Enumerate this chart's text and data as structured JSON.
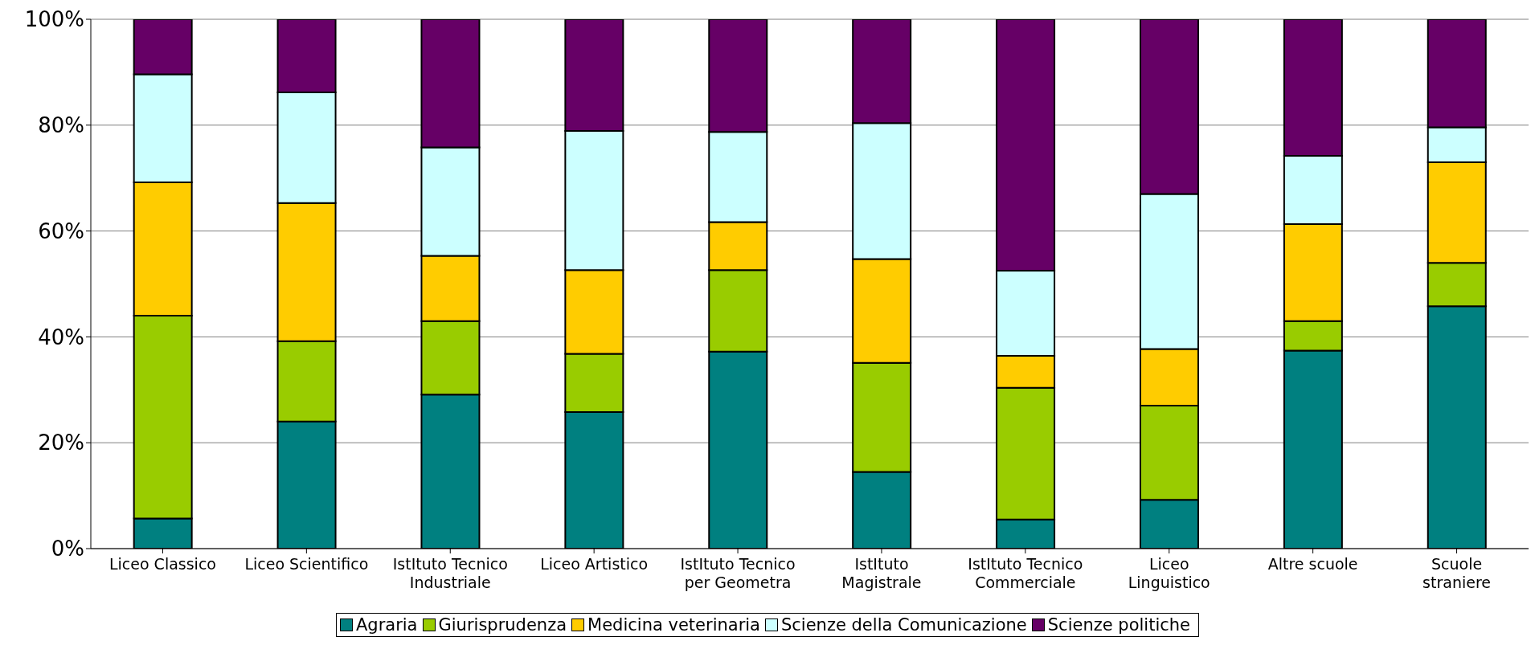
{
  "chart_data": {
    "type": "bar",
    "stacked": true,
    "categories": [
      "Liceo Classico",
      "Liceo Scientifico",
      "IstItuto Tecnico\nIndustriale",
      "Liceo Artistico",
      "IstItuto Tecnico\nper Geometra",
      "IstItuto\nMagistrale",
      "IstItuto Tecnico\nCommerciale",
      "Liceo\nLinguistico",
      "Altre scuole",
      "Scuole\nstraniere"
    ],
    "series": [
      {
        "name": "Agraria",
        "color": "#008080",
        "values": [
          5.7,
          24,
          29.1,
          25.8,
          37.2,
          14.5,
          5.5,
          9.2,
          37.4,
          45.8
        ]
      },
      {
        "name": "Giurisprudenza",
        "color": "#99cc00",
        "values": [
          38.3,
          15.2,
          13.9,
          11,
          15.4,
          20.6,
          24.9,
          17.8,
          5.6,
          8.2
        ]
      },
      {
        "name": "Medicina veterinaria",
        "color": "#ffcc00",
        "values": [
          25.2,
          26.1,
          12.3,
          15.8,
          9.1,
          19.6,
          6,
          10.7,
          18.3,
          19
        ]
      },
      {
        "name": "Scienze della Comunicazione",
        "color": "#ccffff",
        "values": [
          20.4,
          20.9,
          20.5,
          26.3,
          17,
          25.7,
          16.1,
          29.3,
          12.9,
          6.6
        ]
      },
      {
        "name": "Scienze politiche",
        "color": "#660066",
        "values": [
          10.4,
          13.8,
          24.2,
          21.1,
          21.3,
          19.6,
          47.5,
          33,
          25.8,
          20.4
        ]
      }
    ],
    "ylim": [
      0,
      100
    ],
    "yticks": [
      {
        "value": 0,
        "label": "0%"
      },
      {
        "value": 20,
        "label": "20%"
      },
      {
        "value": 40,
        "label": "40%"
      },
      {
        "value": 60,
        "label": "60%"
      },
      {
        "value": 80,
        "label": "80%"
      },
      {
        "value": 100,
        "label": "100%"
      }
    ],
    "grid": "y",
    "legend": "bottom"
  }
}
